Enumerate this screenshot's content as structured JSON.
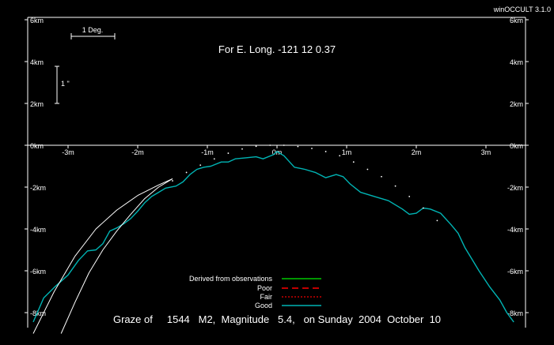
{
  "app": {
    "version_label": "winOCCULT 3.1.0"
  },
  "colors": {
    "background": "#000000",
    "axes": "#ffffff",
    "good": "#00b4b4",
    "derived": "#00c800",
    "poor": "#ff0000",
    "fair": "#c80000",
    "limb_projection": "#ffffff"
  },
  "chart_data": {
    "type": "line",
    "title": "For E. Long. -121 12  0.37",
    "caption": "Graze of     1544   M2,  Magnitude   5.4,   on Sunday  2004  October  10",
    "xlim": [
      -3.5,
      3.4
    ],
    "ylim": [
      -9.0,
      6.0
    ],
    "grid": false,
    "x_ticks": [
      {
        "value": -3,
        "label": "-3m"
      },
      {
        "value": -2,
        "label": "-2m"
      },
      {
        "value": -1,
        "label": "-1m"
      },
      {
        "value": 0,
        "label": "0m"
      },
      {
        "value": 1,
        "label": "1m"
      },
      {
        "value": 2,
        "label": "2m"
      },
      {
        "value": 3,
        "label": "3m"
      }
    ],
    "y_ticks_left": [
      {
        "value": 6,
        "label": "6km"
      },
      {
        "value": 4,
        "label": "4km"
      },
      {
        "value": 2,
        "label": "2km"
      },
      {
        "value": 0,
        "label": "0km"
      },
      {
        "value": -2,
        "label": "-2km"
      },
      {
        "value": -4,
        "label": "-4km"
      },
      {
        "value": -6,
        "label": "-6km"
      },
      {
        "value": -8,
        "label": "-8km"
      }
    ],
    "y_ticks_right": [
      {
        "value": 6,
        "label": "6km"
      },
      {
        "value": 4,
        "label": "4km"
      },
      {
        "value": 2,
        "label": "2km"
      },
      {
        "value": 0,
        "label": "0km"
      },
      {
        "value": -2,
        "label": "-2km"
      },
      {
        "value": -4,
        "label": "-4km"
      },
      {
        "value": -6,
        "label": "-6km"
      },
      {
        "value": -8,
        "label": "-8km"
      }
    ],
    "scale_bars": {
      "degree_label": "1 Deg.",
      "arcsec_label": "1 \""
    },
    "legend": {
      "placement": "bottom-center",
      "entries": [
        {
          "label": "Derived from observations",
          "color": "#00c800",
          "dash": "solid"
        },
        {
          "label": "Poor",
          "color": "#ff0000",
          "dash": "long-dash"
        },
        {
          "label": "Fair",
          "color": "#c80000",
          "dash": "dotted"
        },
        {
          "label": "Good",
          "color": "#00b4b4",
          "dash": "solid"
        }
      ]
    },
    "series": [
      {
        "name": "Good",
        "style": "profile",
        "points": [
          [
            -3.5,
            -8.45
          ],
          [
            -3.35,
            -7.3
          ],
          [
            -3.2,
            -6.8
          ],
          [
            -3.0,
            -6.2
          ],
          [
            -2.85,
            -5.5
          ],
          [
            -2.72,
            -5.05
          ],
          [
            -2.6,
            -5.0
          ],
          [
            -2.5,
            -4.7
          ],
          [
            -2.4,
            -4.1
          ],
          [
            -2.3,
            -3.95
          ],
          [
            -2.2,
            -3.75
          ],
          [
            -2.1,
            -3.5
          ],
          [
            -2.0,
            -3.15
          ],
          [
            -1.9,
            -2.75
          ],
          [
            -1.8,
            -2.45
          ],
          [
            -1.7,
            -2.25
          ],
          [
            -1.6,
            -2.05
          ],
          [
            -1.45,
            -1.95
          ],
          [
            -1.35,
            -1.75
          ],
          [
            -1.25,
            -1.4
          ],
          [
            -1.15,
            -1.15
          ],
          [
            -1.05,
            -1.05
          ],
          [
            -0.95,
            -1.0
          ],
          [
            -0.8,
            -0.8
          ],
          [
            -0.7,
            -0.8
          ],
          [
            -0.6,
            -0.65
          ],
          [
            -0.45,
            -0.6
          ],
          [
            -0.3,
            -0.55
          ],
          [
            -0.2,
            -0.65
          ],
          [
            -0.05,
            -0.45
          ],
          [
            0.0,
            -0.3
          ],
          [
            0.1,
            -0.5
          ],
          [
            0.25,
            -1.05
          ],
          [
            0.4,
            -1.15
          ],
          [
            0.55,
            -1.3
          ],
          [
            0.7,
            -1.55
          ],
          [
            0.85,
            -1.4
          ],
          [
            0.95,
            -1.5
          ],
          [
            1.05,
            -1.85
          ],
          [
            1.2,
            -2.25
          ],
          [
            1.4,
            -2.45
          ],
          [
            1.6,
            -2.65
          ],
          [
            1.8,
            -3.05
          ],
          [
            1.9,
            -3.3
          ],
          [
            2.0,
            -3.25
          ],
          [
            2.1,
            -3.0
          ],
          [
            2.2,
            -3.05
          ],
          [
            2.35,
            -3.25
          ],
          [
            2.5,
            -3.8
          ],
          [
            2.6,
            -4.2
          ],
          [
            2.7,
            -4.9
          ],
          [
            2.8,
            -5.45
          ],
          [
            2.9,
            -6.0
          ],
          [
            3.05,
            -6.75
          ],
          [
            3.2,
            -7.4
          ],
          [
            3.3,
            -8.0
          ],
          [
            3.4,
            -8.45
          ]
        ]
      },
      {
        "name": "Limb projection",
        "style": "dotted",
        "points": [
          [
            -1.5,
            -1.7
          ],
          [
            -1.3,
            -1.3
          ],
          [
            -1.1,
            -0.95
          ],
          [
            -0.9,
            -0.65
          ],
          [
            -0.7,
            -0.38
          ],
          [
            -0.5,
            -0.18
          ],
          [
            -0.3,
            -0.05
          ],
          [
            -0.1,
            0.0
          ],
          [
            0.1,
            0.0
          ],
          [
            0.3,
            -0.06
          ],
          [
            0.5,
            -0.15
          ],
          [
            0.7,
            -0.3
          ],
          [
            0.9,
            -0.5
          ],
          [
            1.1,
            -0.8
          ],
          [
            1.3,
            -1.15
          ],
          [
            1.5,
            -1.5
          ],
          [
            1.7,
            -1.95
          ],
          [
            1.9,
            -2.45
          ],
          [
            2.1,
            -3.0
          ],
          [
            2.3,
            -3.6
          ]
        ]
      },
      {
        "name": "Northern limit",
        "style": "thin",
        "points": [
          [
            -3.5,
            -9.0
          ],
          [
            -3.2,
            -7.0
          ],
          [
            -2.9,
            -5.3
          ],
          [
            -2.6,
            -4.0
          ],
          [
            -2.3,
            -3.1
          ],
          [
            -2.0,
            -2.4
          ],
          [
            -1.7,
            -1.9
          ],
          [
            -1.5,
            -1.6
          ]
        ]
      },
      {
        "name": "Southern limit",
        "style": "thin",
        "points": [
          [
            -3.1,
            -9.0
          ],
          [
            -2.9,
            -7.5
          ],
          [
            -2.7,
            -6.1
          ],
          [
            -2.5,
            -5.0
          ],
          [
            -2.3,
            -4.1
          ],
          [
            -2.1,
            -3.3
          ],
          [
            -1.9,
            -2.55
          ],
          [
            -1.7,
            -2.0
          ],
          [
            -1.5,
            -1.6
          ]
        ]
      }
    ]
  }
}
